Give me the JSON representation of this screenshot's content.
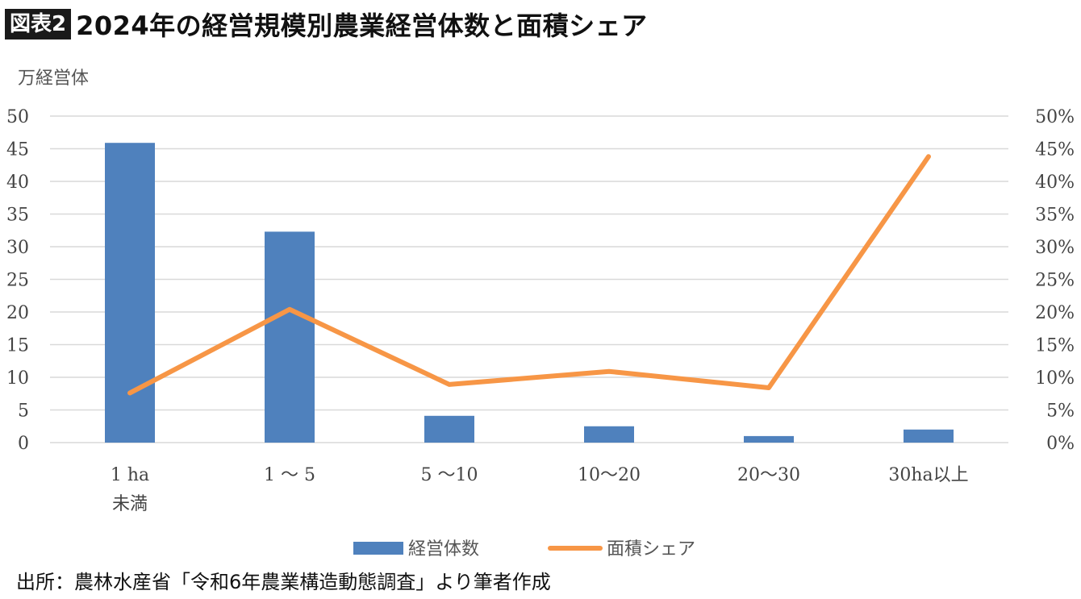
{
  "header": {
    "badge": "図表2",
    "title": "2024年の経営規模別農業経営体数と面積シェア"
  },
  "source": "出所：農林水産省「令和6年農業構造動態調査」より筆者作成",
  "chart_data": {
    "type": "bar",
    "categories": [
      "1 ha\n未満",
      "1 ～ 5",
      "5 ～10",
      "10～20",
      "20～30",
      "30ha以上"
    ],
    "ylabel": "万経営体",
    "ylim": [
      0,
      50
    ],
    "y2lim": [
      0,
      0.5
    ],
    "yticks": [
      "0",
      "5",
      "10",
      "15",
      "20",
      "25",
      "30",
      "35",
      "40",
      "45",
      "50"
    ],
    "y2ticks": [
      "0%",
      "5%",
      "10%",
      "15%",
      "20%",
      "25%",
      "30%",
      "35%",
      "40%",
      "45%",
      "50%"
    ],
    "grid": true,
    "legend": "bottom",
    "series": [
      {
        "name": "経営体数",
        "type": "bar",
        "axis": "left",
        "color": "#4f81bd",
        "values": [
          45.9,
          32.3,
          4.1,
          2.5,
          1.0,
          2.0
        ]
      },
      {
        "name": "面積シェア",
        "type": "line",
        "axis": "right",
        "color": "#f79646",
        "values": [
          0.076,
          0.204,
          0.089,
          0.109,
          0.084,
          0.438
        ]
      }
    ]
  }
}
